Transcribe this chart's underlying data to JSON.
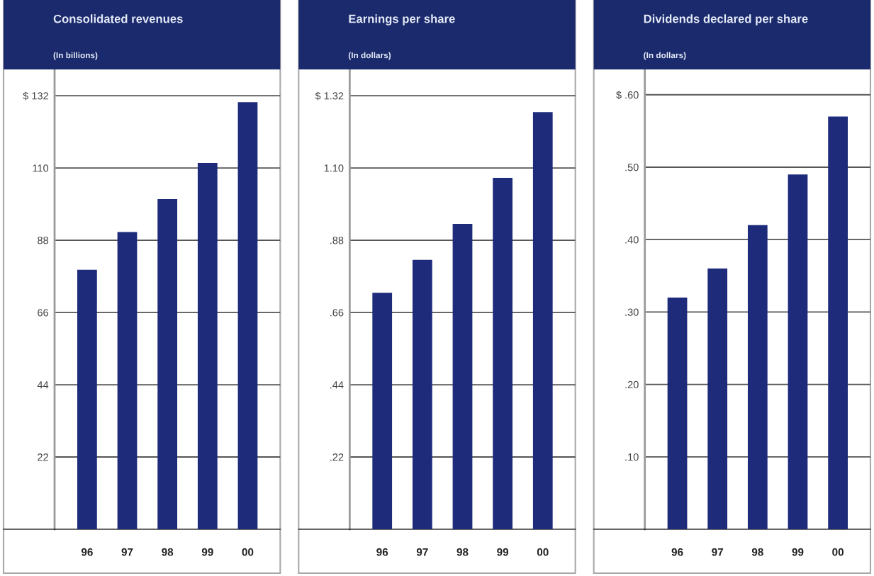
{
  "chart_data": [
    {
      "type": "bar",
      "title": "Consolidated revenues",
      "subtitle": "(In billions)",
      "categories": [
        "96",
        "97",
        "98",
        "99",
        "00"
      ],
      "values": [
        79,
        90.5,
        100.5,
        111.5,
        130
      ],
      "color": "#1d2b7a",
      "ylim": [
        0,
        140
      ],
      "yticks": [
        22,
        44,
        66,
        88,
        110,
        {
          "value": 132,
          "label": "$ 132"
        }
      ],
      "grid": "y"
    },
    {
      "type": "bar",
      "title": "Earnings per share",
      "subtitle": "(In dollars)",
      "categories": [
        "96",
        "97",
        "98",
        "99",
        "00"
      ],
      "values": [
        0.72,
        0.82,
        0.93,
        1.07,
        1.27
      ],
      "color": "#1d2b7a",
      "ylim": [
        0,
        1.4
      ],
      "yticks": [
        {
          "value": 0.22,
          "label": ".22"
        },
        {
          "value": 0.44,
          "label": ".44"
        },
        {
          "value": 0.66,
          "label": ".66"
        },
        {
          "value": 0.88,
          "label": ".88"
        },
        {
          "value": 1.1,
          "label": "1.10"
        },
        {
          "value": 1.32,
          "label": "$ 1.32"
        }
      ],
      "grid": "y"
    },
    {
      "type": "bar",
      "title": "Dividends declared per share",
      "subtitle": "(In dollars)",
      "categories": [
        "96",
        "97",
        "98",
        "99",
        "00"
      ],
      "values": [
        0.32,
        0.36,
        0.42,
        0.49,
        0.57
      ],
      "color": "#1d2b7a",
      "ylim": [
        0,
        0.635
      ],
      "yticks": [
        {
          "value": 0.1,
          "label": ".10"
        },
        {
          "value": 0.2,
          "label": ".20"
        },
        {
          "value": 0.3,
          "label": ".30"
        },
        {
          "value": 0.4,
          "label": ".40"
        },
        {
          "value": 0.5,
          "label": ".50"
        },
        {
          "value": 0.6,
          "label": "$ .60"
        }
      ],
      "grid": "y"
    }
  ]
}
